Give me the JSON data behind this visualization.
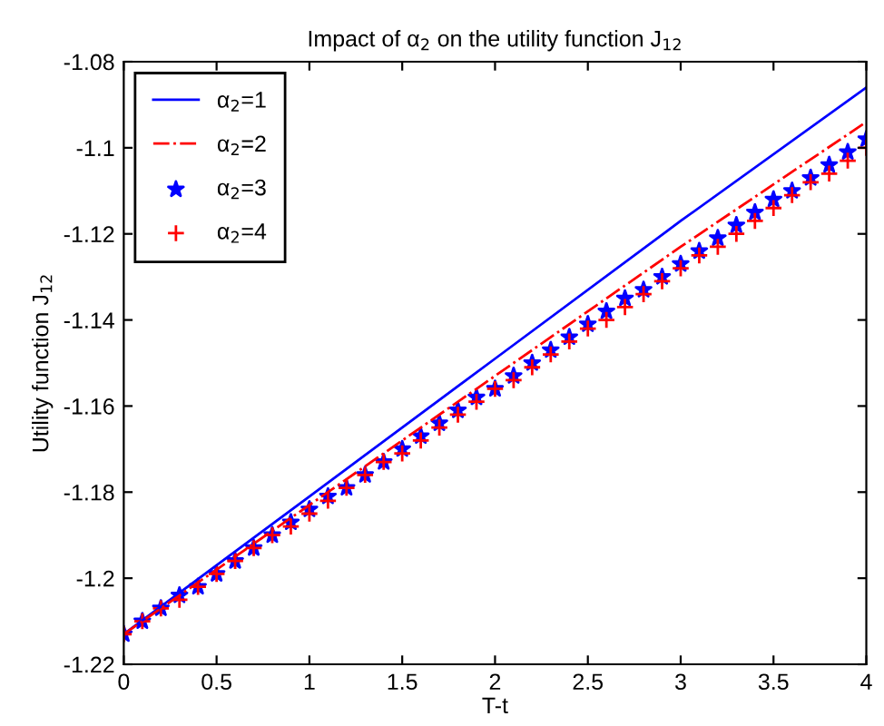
{
  "chart_data": {
    "type": "line",
    "title": "Impact of α$_{2}$ on the utility function J$_{12}$",
    "xlabel": "T-t",
    "ylabel": "Utility function J$_{12}$",
    "xlim": [
      0,
      4
    ],
    "xticks": [
      0,
      0.5,
      1,
      1.5,
      2,
      2.5,
      3,
      3.5,
      4
    ],
    "ylim": [
      -1.22,
      -1.08
    ],
    "yticks": [
      -1.22,
      -1.2,
      -1.18,
      -1.16,
      -1.14,
      -1.12,
      -1.1,
      -1.08
    ],
    "legend": "top left",
    "grid": false,
    "series": [
      {
        "name": "α$_{2}$=1",
        "color": "#0000ff",
        "line_style": "solid",
        "marker": "none",
        "x": [
          0,
          1,
          2,
          3,
          4
        ],
        "values": [
          -1.213,
          -1.181,
          -1.149,
          -1.117,
          -1.086
        ]
      },
      {
        "name": "α$_{2}$=2",
        "color": "#ff0000",
        "line_style": "dashdot",
        "marker": "none",
        "x": [
          0,
          1,
          2,
          3,
          4
        ],
        "values": [
          -1.213,
          -1.183,
          -1.153,
          -1.123,
          -1.094
        ]
      },
      {
        "name": "α$_{2}$=3",
        "type": "scatter",
        "color": "#0000ff",
        "marker": "star",
        "x": [
          0,
          0.1,
          0.2,
          0.3,
          0.4,
          0.5,
          0.6,
          0.7,
          0.8,
          0.9,
          1,
          1.1,
          1.2,
          1.3,
          1.4,
          1.5,
          1.6,
          1.7,
          1.8,
          1.9,
          2,
          2.1,
          2.2,
          2.3,
          2.4,
          2.5,
          2.6,
          2.7,
          2.8,
          2.9,
          3,
          3.1,
          3.2,
          3.3,
          3.4,
          3.5,
          3.6,
          3.7,
          3.8,
          3.9,
          4
        ],
        "values": [
          -1.213,
          -1.21,
          -1.207,
          -1.204,
          -1.202,
          -1.199,
          -1.196,
          -1.193,
          -1.19,
          -1.187,
          -1.184,
          -1.181,
          -1.179,
          -1.176,
          -1.173,
          -1.17,
          -1.167,
          -1.164,
          -1.161,
          -1.158,
          -1.156,
          -1.153,
          -1.15,
          -1.147,
          -1.144,
          -1.141,
          -1.138,
          -1.135,
          -1.133,
          -1.13,
          -1.127,
          -1.124,
          -1.121,
          -1.118,
          -1.115,
          -1.112,
          -1.11,
          -1.107,
          -1.104,
          -1.101,
          -1.098
        ]
      },
      {
        "name": "α$_{2}$=4",
        "type": "scatter",
        "color": "#ff0000",
        "marker": "cross",
        "x": [
          0,
          0.1,
          0.2,
          0.3,
          0.4,
          0.5,
          0.6,
          0.7,
          0.8,
          0.9,
          1,
          1.1,
          1.2,
          1.3,
          1.4,
          1.5,
          1.6,
          1.7,
          1.8,
          1.9,
          2,
          2.1,
          2.2,
          2.3,
          2.4,
          2.5,
          2.6,
          2.7,
          2.8,
          2.9,
          3,
          3.1,
          3.2,
          3.3,
          3.4,
          3.5,
          3.6,
          3.7,
          3.8,
          3.9,
          4
        ],
        "values": [
          -1.213,
          -1.21,
          -1.207,
          -1.205,
          -1.202,
          -1.199,
          -1.196,
          -1.193,
          -1.19,
          -1.188,
          -1.185,
          -1.182,
          -1.179,
          -1.176,
          -1.173,
          -1.171,
          -1.168,
          -1.165,
          -1.162,
          -1.159,
          -1.156,
          -1.154,
          -1.151,
          -1.148,
          -1.145,
          -1.142,
          -1.14,
          -1.137,
          -1.134,
          -1.131,
          -1.128,
          -1.125,
          -1.123,
          -1.12,
          -1.117,
          -1.114,
          -1.111,
          -1.108,
          -1.106,
          -1.103,
          -1.1
        ]
      }
    ]
  }
}
